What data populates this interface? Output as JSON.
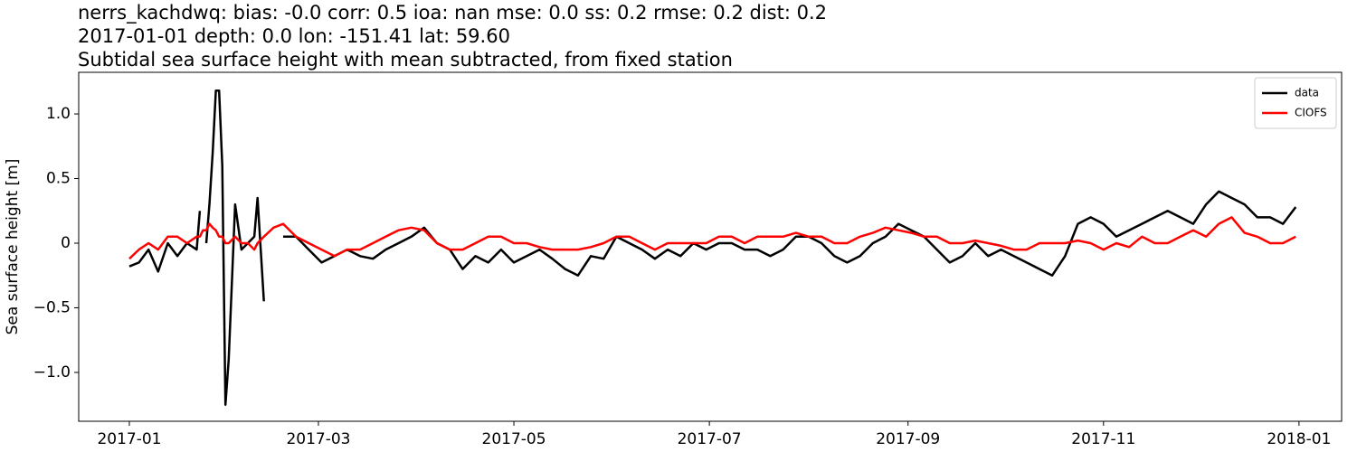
{
  "chart_data": {
    "type": "line",
    "title": [
      "nerrs_kachdwq: bias: -0.0  corr: 0.5  ioa: nan  mse: 0.0  ss: 0.2  rmse: 0.2  dist: 0.2",
      "2017-01-01 depth: 0.0 lon: -151.41 lat: 59.60",
      "Subtidal sea surface height with mean subtracted, from fixed station"
    ],
    "y_label": "Sea surface height [m]",
    "x": [
      0,
      3,
      6,
      9,
      12,
      15,
      18,
      21,
      22,
      23,
      24,
      25,
      26,
      27,
      28,
      29,
      30,
      31,
      33,
      35,
      37,
      39,
      40,
      42,
      45,
      48,
      52,
      56,
      60,
      64,
      68,
      72,
      76,
      80,
      84,
      88,
      92,
      96,
      100,
      104,
      108,
      112,
      116,
      120,
      124,
      128,
      132,
      136,
      140,
      144,
      148,
      152,
      156,
      160,
      164,
      168,
      172,
      176,
      180,
      184,
      188,
      192,
      196,
      200,
      204,
      208,
      212,
      216,
      220,
      224,
      228,
      232,
      236,
      240,
      244,
      248,
      252,
      256,
      260,
      264,
      268,
      272,
      276,
      280,
      284,
      288,
      292,
      296,
      300,
      304,
      308,
      312,
      316,
      320,
      324,
      328,
      332,
      336,
      340,
      344,
      348,
      352,
      356,
      360,
      364
    ],
    "series": [
      {
        "name": "data",
        "color": "#000000",
        "values": [
          -0.18,
          -0.15,
          -0.05,
          -0.22,
          0.0,
          -0.1,
          0.0,
          -0.05,
          0.25,
          null,
          0.0,
          0.3,
          0.7,
          1.18,
          1.18,
          0.6,
          -1.25,
          -0.9,
          0.3,
          -0.05,
          0.0,
          0.05,
          0.35,
          -0.45,
          null,
          0.05,
          0.05,
          -0.05,
          -0.15,
          -0.1,
          -0.05,
          -0.1,
          -0.12,
          -0.05,
          0.0,
          0.05,
          0.12,
          0.0,
          -0.05,
          -0.2,
          -0.1,
          -0.15,
          -0.05,
          -0.15,
          -0.1,
          -0.05,
          -0.12,
          -0.2,
          -0.25,
          -0.1,
          -0.12,
          0.05,
          0.0,
          -0.05,
          -0.12,
          -0.05,
          -0.1,
          0.0,
          -0.05,
          0.0,
          0.0,
          -0.05,
          -0.05,
          -0.1,
          -0.05,
          0.05,
          0.05,
          0.0,
          -0.1,
          -0.15,
          -0.1,
          0.0,
          0.05,
          0.15,
          0.1,
          0.05,
          -0.05,
          -0.15,
          -0.1,
          0.0,
          -0.1,
          -0.05,
          -0.1,
          -0.15,
          -0.2,
          -0.25,
          -0.1,
          0.15,
          0.2,
          0.15,
          0.05,
          0.1,
          0.15,
          0.2,
          0.25,
          0.2,
          0.15,
          0.3,
          0.4,
          0.35,
          0.3,
          0.2,
          0.2,
          0.15,
          0.28
        ]
      },
      {
        "name": "CIOFS",
        "color": "#ff0000",
        "values": [
          -0.12,
          -0.05,
          0.0,
          -0.05,
          0.05,
          0.05,
          0.0,
          0.05,
          0.05,
          0.1,
          0.1,
          0.15,
          0.12,
          0.1,
          0.05,
          0.05,
          0.0,
          0.0,
          0.05,
          0.0,
          0.0,
          -0.05,
          0.0,
          0.05,
          0.12,
          0.15,
          0.05,
          0.0,
          -0.05,
          -0.1,
          -0.05,
          -0.05,
          0.0,
          0.05,
          0.1,
          0.12,
          0.1,
          0.0,
          -0.05,
          -0.05,
          0.0,
          0.05,
          0.05,
          0.0,
          0.0,
          -0.03,
          -0.05,
          -0.05,
          -0.05,
          -0.03,
          0.0,
          0.05,
          0.05,
          0.0,
          -0.05,
          0.0,
          0.0,
          0.0,
          0.0,
          0.05,
          0.05,
          0.0,
          0.05,
          0.05,
          0.05,
          0.08,
          0.05,
          0.05,
          0.0,
          0.0,
          0.05,
          0.08,
          0.12,
          0.1,
          0.08,
          0.05,
          0.05,
          0.0,
          0.0,
          0.02,
          0.0,
          -0.02,
          -0.05,
          -0.05,
          0.0,
          0.0,
          0.0,
          0.02,
          0.0,
          -0.05,
          0.0,
          -0.03,
          0.05,
          0.0,
          0.0,
          0.05,
          0.1,
          0.05,
          0.15,
          0.2,
          0.08,
          0.05,
          0.0,
          0.0,
          0.05
        ]
      }
    ],
    "xlim": [
      -15.8,
      378.3
    ],
    "xticks": [
      {
        "value": 0,
        "label": "2017-01"
      },
      {
        "value": 59,
        "label": "2017-03"
      },
      {
        "value": 120,
        "label": "2017-05"
      },
      {
        "value": 181,
        "label": "2017-07"
      },
      {
        "value": 243,
        "label": "2017-09"
      },
      {
        "value": 304,
        "label": "2017-11"
      },
      {
        "value": 365,
        "label": "2018-01"
      }
    ],
    "ylim": [
      -1.378,
      1.322
    ],
    "yticks": [
      {
        "value": -1.0,
        "label": "−1.0"
      },
      {
        "value": -0.5,
        "label": "−0.5"
      },
      0.0,
      {
        "value": 0.5,
        "label": "0.5"
      },
      {
        "value": 1.0,
        "label": "1.0"
      }
    ],
    "grid": false,
    "legend": "upper right"
  }
}
